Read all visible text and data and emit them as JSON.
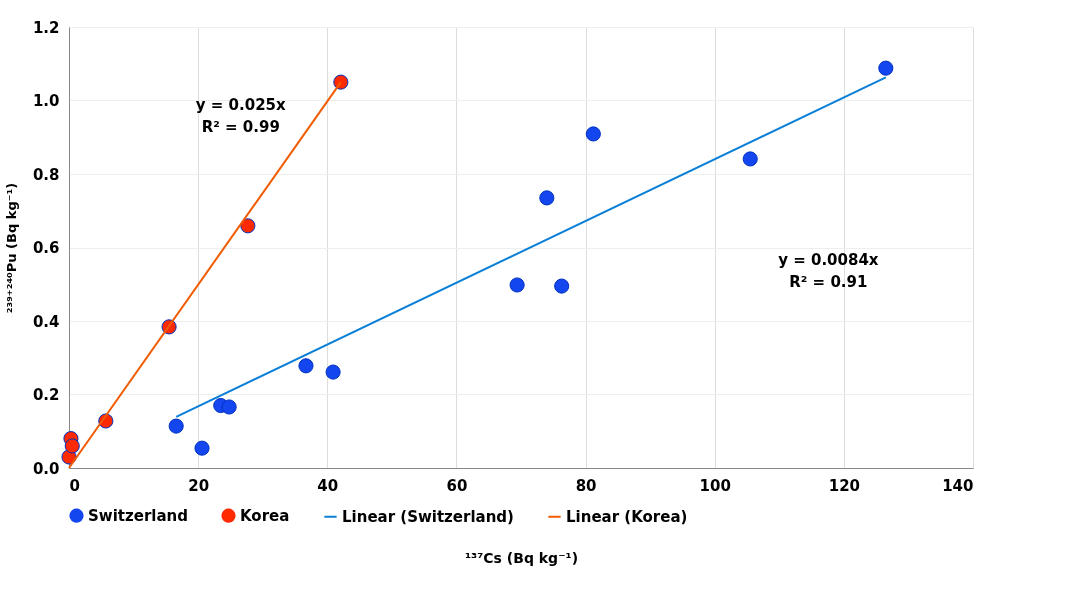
{
  "chart_data": {
    "type": "scatter",
    "xlabel": "¹³⁷Cs (Bq kg⁻¹)",
    "ylabel": "²³⁹⁺²⁴⁰Pu (Bq kg⁻¹)",
    "xlim": [
      0,
      140
    ],
    "xticks": [
      0,
      20,
      40,
      60,
      80,
      100,
      120,
      140
    ],
    "ylim": [
      0,
      1.2
    ],
    "yticks": [
      {
        "value": 0,
        "label": "0.0"
      },
      {
        "value": 0.2,
        "label": "0.2"
      },
      {
        "value": 0.4,
        "label": "0.4"
      },
      {
        "value": 0.6,
        "label": "0.6"
      },
      {
        "value": 0.8,
        "label": "0.8"
      },
      {
        "value": 1.0,
        "label": "1.0"
      },
      {
        "value": 1.2,
        "label": "1.2"
      }
    ],
    "grid": true,
    "legend": "bottom",
    "series": [
      {
        "name": "Switzerland",
        "color": "#1446f0",
        "marker": "circle",
        "x": [
          16.6,
          20.6,
          23.5,
          24.8,
          36.7,
          40.9,
          69.4,
          74,
          76.3,
          81.2,
          105.5,
          126.5
        ],
        "values": [
          0.114,
          0.054,
          0.17,
          0.166,
          0.278,
          0.261,
          0.498,
          0.735,
          0.495,
          0.909,
          0.841,
          1.088
        ]
      },
      {
        "name": "Korea",
        "color": "#ff2a00",
        "marker": "circle",
        "x": [
          0,
          0.3,
          0.5,
          5.7,
          15.5,
          27.7,
          42.1
        ],
        "values": [
          0.03,
          0.08,
          0.06,
          0.128,
          0.384,
          0.659,
          1.05
        ]
      },
      {
        "name": "Linear (Switzerland)",
        "type": "line",
        "color": "#0a7fd8",
        "x": [
          16.6,
          126.5
        ],
        "values": [
          0.139,
          1.063
        ]
      },
      {
        "name": "Linear (Korea)",
        "type": "line",
        "color": "#f05a00",
        "x": [
          0,
          42.1
        ],
        "values": [
          0,
          1.05
        ]
      }
    ],
    "annotations": [
      "y = 0.025x\nR² = 0.99",
      "y = 0.0084x\nR² = 0.91"
    ]
  }
}
